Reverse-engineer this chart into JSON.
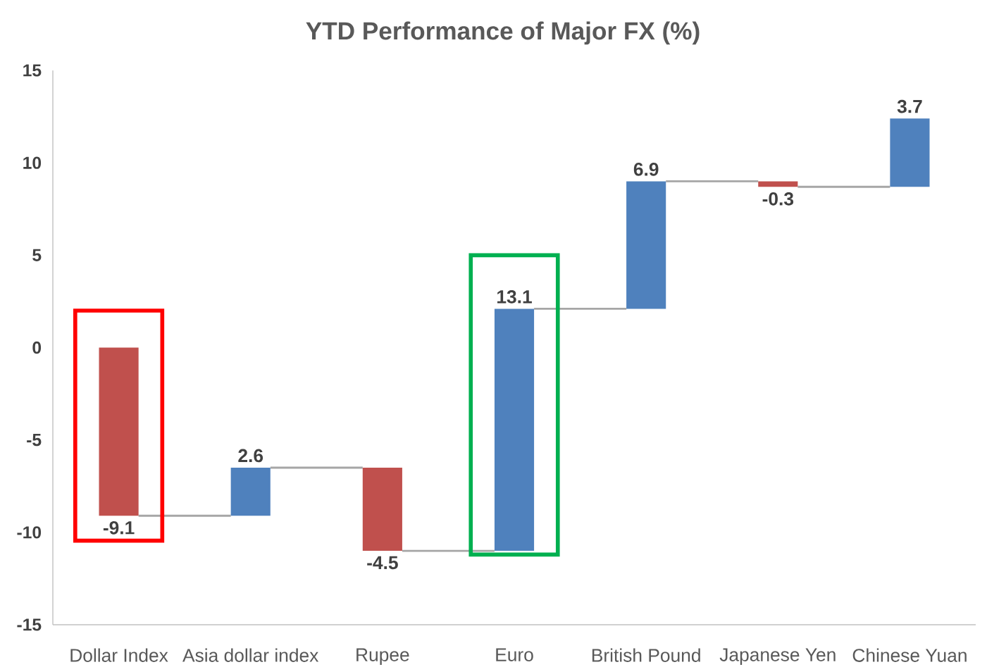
{
  "chart_data": {
    "type": "bar",
    "title": "YTD Performance of Major FX (%)",
    "categories": [
      "Dollar Index",
      "Asia dollar index",
      "Rupee",
      "Euro",
      "British Pound",
      "Japanese Yen",
      "Chinese Yuan"
    ],
    "values": [
      -9.1,
      2.6,
      -4.5,
      13.1,
      6.9,
      -0.3,
      3.7
    ],
    "base": [
      0,
      -9.1,
      -6.5,
      -11.0,
      2.1,
      9.0,
      8.7
    ],
    "colors": [
      "#c0504d",
      "#4f81bd",
      "#c0504d",
      "#4f81bd",
      "#4f81bd",
      "#c0504d",
      "#4f81bd"
    ],
    "ylim": [
      -15,
      15
    ],
    "yticks": [
      -15,
      -10,
      -5,
      0,
      5,
      10,
      15
    ],
    "data_labels": true,
    "grid": false
  }
}
